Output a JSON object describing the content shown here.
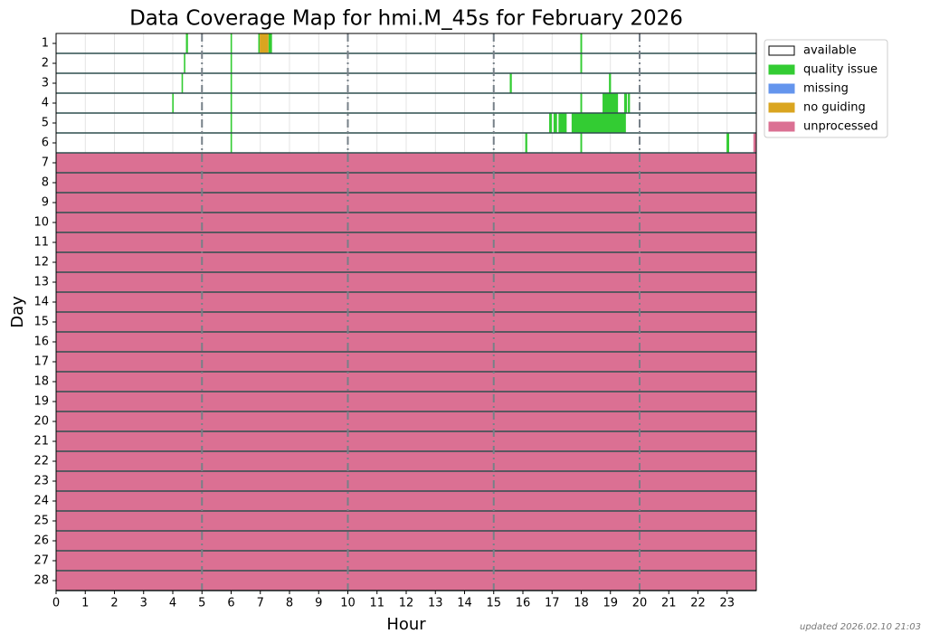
{
  "chart_data": {
    "type": "coverage",
    "title": "Data Coverage Map for hmi.M_45s for February 2026",
    "x_label": "Hour",
    "y_label": "Day",
    "annotation": "updated 2026.02.10 21:03",
    "categories": [
      1,
      2,
      3,
      4,
      5,
      6,
      7,
      8,
      9,
      10,
      11,
      12,
      13,
      14,
      15,
      16,
      17,
      18,
      19,
      20,
      21,
      22,
      23,
      24,
      25,
      26,
      27,
      28
    ],
    "xlim": [
      0,
      24
    ],
    "xticks": [
      0,
      1,
      2,
      3,
      4,
      5,
      6,
      7,
      8,
      9,
      10,
      11,
      12,
      13,
      14,
      15,
      16,
      17,
      18,
      19,
      20,
      21,
      22,
      23
    ],
    "xmajor": [
      5,
      10,
      15,
      20
    ],
    "grid": true,
    "legend": "upper right",
    "series": [
      {
        "name": "available",
        "color": "#ffffff",
        "spans": []
      },
      {
        "name": "quality issue",
        "color": "#33cc33",
        "spans": [
          {
            "day": 1,
            "start": 4.45,
            "end": 4.52
          },
          {
            "day": 1,
            "start": 5.98,
            "end": 6.03
          },
          {
            "day": 1,
            "start": 6.93,
            "end": 6.98
          },
          {
            "day": 1,
            "start": 7.28,
            "end": 7.4
          },
          {
            "day": 1,
            "start": 17.97,
            "end": 18.03
          },
          {
            "day": 2,
            "start": 4.38,
            "end": 4.43
          },
          {
            "day": 2,
            "start": 5.98,
            "end": 6.03
          },
          {
            "day": 2,
            "start": 17.97,
            "end": 18.03
          },
          {
            "day": 3,
            "start": 4.3,
            "end": 4.35
          },
          {
            "day": 3,
            "start": 5.98,
            "end": 6.03
          },
          {
            "day": 3,
            "start": 15.55,
            "end": 15.62
          },
          {
            "day": 3,
            "start": 18.95,
            "end": 19.02
          },
          {
            "day": 4,
            "start": 3.98,
            "end": 4.03
          },
          {
            "day": 4,
            "start": 5.98,
            "end": 6.03
          },
          {
            "day": 4,
            "start": 17.97,
            "end": 18.03
          },
          {
            "day": 4,
            "start": 18.73,
            "end": 19.26
          },
          {
            "day": 4,
            "start": 19.47,
            "end": 19.57
          },
          {
            "day": 4,
            "start": 19.6,
            "end": 19.67
          },
          {
            "day": 5,
            "start": 5.98,
            "end": 6.03
          },
          {
            "day": 5,
            "start": 16.9,
            "end": 16.99
          },
          {
            "day": 5,
            "start": 17.05,
            "end": 17.17
          },
          {
            "day": 5,
            "start": 17.22,
            "end": 17.5
          },
          {
            "day": 5,
            "start": 17.67,
            "end": 19.53
          },
          {
            "day": 6,
            "start": 5.98,
            "end": 6.03
          },
          {
            "day": 6,
            "start": 16.08,
            "end": 16.15
          },
          {
            "day": 6,
            "start": 17.97,
            "end": 18.03
          },
          {
            "day": 6,
            "start": 22.98,
            "end": 23.07
          }
        ]
      },
      {
        "name": "missing",
        "color": "#6495ed",
        "spans": []
      },
      {
        "name": "no guiding",
        "color": "#daa520",
        "spans": [
          {
            "day": 1,
            "start": 6.98,
            "end": 7.28
          }
        ]
      },
      {
        "name": "unprocessed",
        "color": "#db7093",
        "spans": [
          {
            "day": 6,
            "start": 23.9,
            "end": 24
          },
          {
            "day": 7,
            "start": 0,
            "end": 24
          },
          {
            "day": 8,
            "start": 0,
            "end": 24
          },
          {
            "day": 9,
            "start": 0,
            "end": 24
          },
          {
            "day": 10,
            "start": 0,
            "end": 24
          },
          {
            "day": 11,
            "start": 0,
            "end": 24
          },
          {
            "day": 12,
            "start": 0,
            "end": 24
          },
          {
            "day": 13,
            "start": 0,
            "end": 24
          },
          {
            "day": 14,
            "start": 0,
            "end": 24
          },
          {
            "day": 15,
            "start": 0,
            "end": 24
          },
          {
            "day": 16,
            "start": 0,
            "end": 24
          },
          {
            "day": 17,
            "start": 0,
            "end": 24
          },
          {
            "day": 18,
            "start": 0,
            "end": 24
          },
          {
            "day": 19,
            "start": 0,
            "end": 24
          },
          {
            "day": 20,
            "start": 0,
            "end": 24
          },
          {
            "day": 21,
            "start": 0,
            "end": 24
          },
          {
            "day": 22,
            "start": 0,
            "end": 24
          },
          {
            "day": 23,
            "start": 0,
            "end": 24
          },
          {
            "day": 24,
            "start": 0,
            "end": 24
          },
          {
            "day": 25,
            "start": 0,
            "end": 24
          },
          {
            "day": 26,
            "start": 0,
            "end": 24
          },
          {
            "day": 27,
            "start": 0,
            "end": 24
          },
          {
            "day": 28,
            "start": 0,
            "end": 24
          }
        ]
      }
    ]
  }
}
